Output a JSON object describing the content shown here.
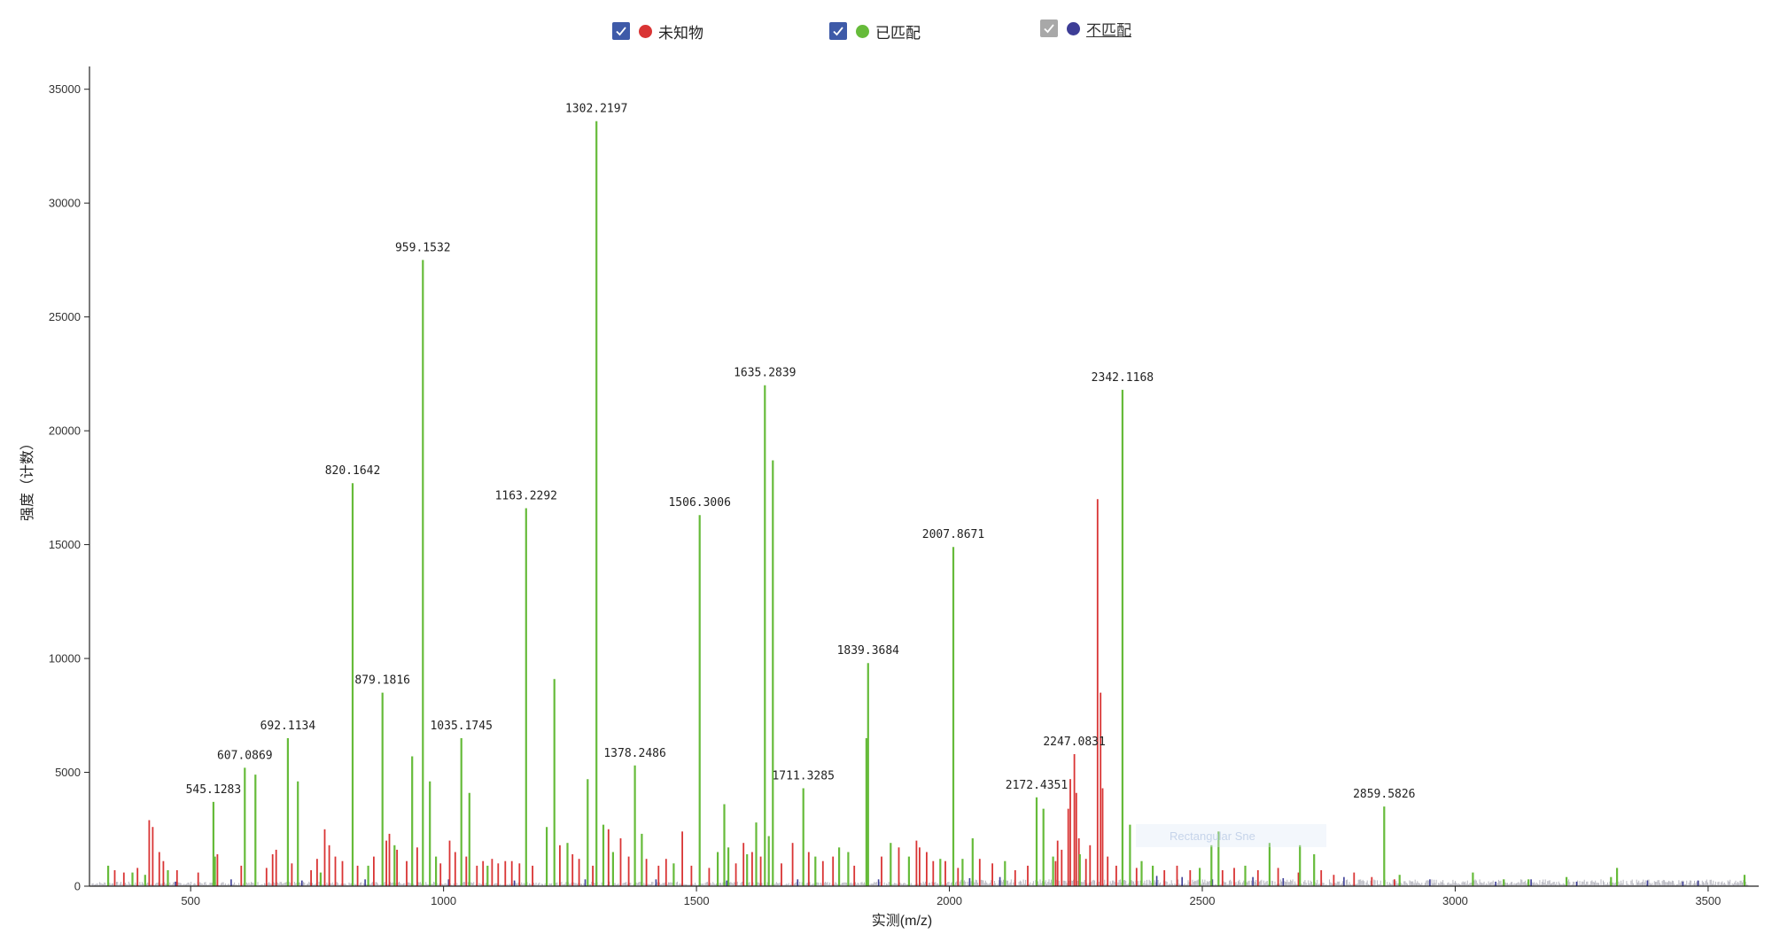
{
  "legend": {
    "items": [
      {
        "id": "unknown",
        "label": "未知物",
        "checked": true,
        "checkbox_color": "#3e5aa8",
        "dot_color": "#d93434",
        "link": false
      },
      {
        "id": "matched",
        "label": "已匹配",
        "checked": true,
        "checkbox_color": "#3e5aa8",
        "dot_color": "#66bb3a",
        "link": false
      },
      {
        "id": "unmatched",
        "label": "不匹配",
        "checked": true,
        "checkbox_color": "#a8a8a8",
        "dot_color": "#3d3d96",
        "link": true
      }
    ]
  },
  "overlay_text": "Rectangular Sne",
  "chart_data": {
    "type": "spectrum",
    "xlabel": "实测(m/z)",
    "ylabel": "强度（计数）",
    "xlim": [
      300,
      3600
    ],
    "ylim": [
      0,
      36000
    ],
    "x_ticks": [
      500,
      1000,
      1500,
      2000,
      2500,
      3000,
      3500
    ],
    "y_ticks": [
      0,
      5000,
      10000,
      15000,
      20000,
      25000,
      30000,
      35000
    ],
    "colors": {
      "matched": "#66bb3a",
      "unknown": "#d93434",
      "unmatched": "#3d3d96",
      "noise": "#7a7a8a"
    },
    "labeled_peaks": [
      {
        "mz": 545.1283,
        "intensity": 3700,
        "label": "545.1283"
      },
      {
        "mz": 607.0869,
        "intensity": 5200,
        "label": "607.0869"
      },
      {
        "mz": 692.1134,
        "intensity": 6500,
        "label": "692.1134"
      },
      {
        "mz": 820.1642,
        "intensity": 17700,
        "label": "820.1642"
      },
      {
        "mz": 879.1816,
        "intensity": 8500,
        "label": "879.1816"
      },
      {
        "mz": 959.1532,
        "intensity": 27500,
        "label": "959.1532"
      },
      {
        "mz": 1035.1745,
        "intensity": 6500,
        "label": "1035.1745"
      },
      {
        "mz": 1163.2292,
        "intensity": 16600,
        "label": "1163.2292"
      },
      {
        "mz": 1302.2197,
        "intensity": 33600,
        "label": "1302.2197"
      },
      {
        "mz": 1378.2486,
        "intensity": 5300,
        "label": "1378.2486"
      },
      {
        "mz": 1506.3006,
        "intensity": 16300,
        "label": "1506.3006"
      },
      {
        "mz": 1635.2839,
        "intensity": 22000,
        "label": "1635.2839"
      },
      {
        "mz": 1711.3285,
        "intensity": 4300,
        "label": "1711.3285"
      },
      {
        "mz": 1839.3684,
        "intensity": 9800,
        "label": "1839.3684"
      },
      {
        "mz": 2007.8671,
        "intensity": 14900,
        "label": "2007.8671"
      },
      {
        "mz": 2172.4351,
        "intensity": 3900,
        "label": "2172.4351"
      },
      {
        "mz": 2247.0831,
        "intensity": 5800,
        "label": "2247.0831"
      },
      {
        "mz": 2342.1168,
        "intensity": 21800,
        "label": "2342.1168"
      },
      {
        "mz": 2859.5826,
        "intensity": 3500,
        "label": "2859.5826"
      }
    ],
    "matched_peaks": [
      [
        337,
        900
      ],
      [
        385,
        600
      ],
      [
        410,
        500
      ],
      [
        455,
        700
      ],
      [
        545.13,
        3700
      ],
      [
        548,
        1300
      ],
      [
        607.09,
        5200
      ],
      [
        628,
        4900
      ],
      [
        692.11,
        6500
      ],
      [
        712,
        4600
      ],
      [
        757,
        600
      ],
      [
        820.16,
        17700
      ],
      [
        851,
        900
      ],
      [
        879.18,
        8500
      ],
      [
        903,
        1800
      ],
      [
        938,
        5700
      ],
      [
        959.15,
        27500
      ],
      [
        973,
        4600
      ],
      [
        985,
        1300
      ],
      [
        1035.17,
        6500
      ],
      [
        1051,
        4100
      ],
      [
        1087,
        900
      ],
      [
        1163.23,
        16600
      ],
      [
        1204,
        2600
      ],
      [
        1219,
        9100
      ],
      [
        1245,
        1900
      ],
      [
        1285,
        4700
      ],
      [
        1302.22,
        33600
      ],
      [
        1316,
        2700
      ],
      [
        1335,
        1500
      ],
      [
        1378.25,
        5300
      ],
      [
        1392,
        2300
      ],
      [
        1455,
        1000
      ],
      [
        1506.3,
        16300
      ],
      [
        1542,
        1500
      ],
      [
        1555,
        3600
      ],
      [
        1563,
        1700
      ],
      [
        1600,
        1400
      ],
      [
        1618,
        2800
      ],
      [
        1635.28,
        22000
      ],
      [
        1643,
        2200
      ],
      [
        1651,
        18700
      ],
      [
        1711.33,
        4300
      ],
      [
        1735,
        1300
      ],
      [
        1782,
        1700
      ],
      [
        1800,
        1500
      ],
      [
        1836,
        6500
      ],
      [
        1839.37,
        9800
      ],
      [
        1884,
        1900
      ],
      [
        1920,
        1300
      ],
      [
        1982,
        1200
      ],
      [
        2007.87,
        14900
      ],
      [
        2026,
        1200
      ],
      [
        2046,
        2100
      ],
      [
        2110,
        1100
      ],
      [
        2172.44,
        3900
      ],
      [
        2186,
        3400
      ],
      [
        2205,
        1300
      ],
      [
        2258,
        1400
      ],
      [
        2342.12,
        21800
      ],
      [
        2357,
        2700
      ],
      [
        2380,
        1100
      ],
      [
        2402,
        900
      ],
      [
        2495,
        800
      ],
      [
        2518,
        1800
      ],
      [
        2532,
        2400
      ],
      [
        2585,
        900
      ],
      [
        2633,
        1900
      ],
      [
        2693,
        1800
      ],
      [
        2721,
        1400
      ],
      [
        2859.58,
        3500
      ],
      [
        2890,
        500
      ],
      [
        3035,
        600
      ],
      [
        3096,
        300
      ],
      [
        3145,
        300
      ],
      [
        3220,
        400
      ],
      [
        3308,
        400
      ],
      [
        3320,
        800
      ],
      [
        3572,
        500
      ]
    ],
    "unknown_peaks": [
      [
        350,
        700
      ],
      [
        368,
        600
      ],
      [
        395,
        800
      ],
      [
        418,
        2900
      ],
      [
        425,
        2600
      ],
      [
        438,
        1500
      ],
      [
        446,
        1100
      ],
      [
        473,
        700
      ],
      [
        515,
        600
      ],
      [
        553,
        1400
      ],
      [
        600,
        900
      ],
      [
        650,
        800
      ],
      [
        662,
        1400
      ],
      [
        669,
        1600
      ],
      [
        700,
        1000
      ],
      [
        738,
        700
      ],
      [
        750,
        1200
      ],
      [
        765,
        2500
      ],
      [
        774,
        1800
      ],
      [
        786,
        1300
      ],
      [
        800,
        1100
      ],
      [
        830,
        900
      ],
      [
        862,
        1300
      ],
      [
        887,
        2000
      ],
      [
        893,
        2300
      ],
      [
        908,
        1600
      ],
      [
        927,
        1100
      ],
      [
        948,
        1700
      ],
      [
        994,
        1000
      ],
      [
        1012,
        2000
      ],
      [
        1023,
        1500
      ],
      [
        1045,
        1300
      ],
      [
        1066,
        900
      ],
      [
        1078,
        1100
      ],
      [
        1096,
        1200
      ],
      [
        1108,
        1000
      ],
      [
        1122,
        1100
      ],
      [
        1135,
        1100
      ],
      [
        1150,
        1000
      ],
      [
        1176,
        900
      ],
      [
        1230,
        1800
      ],
      [
        1255,
        1400
      ],
      [
        1268,
        1200
      ],
      [
        1295,
        900
      ],
      [
        1326,
        2500
      ],
      [
        1350,
        2100
      ],
      [
        1366,
        1300
      ],
      [
        1401,
        1200
      ],
      [
        1425,
        900
      ],
      [
        1440,
        1200
      ],
      [
        1472,
        2400
      ],
      [
        1490,
        900
      ],
      [
        1525,
        800
      ],
      [
        1578,
        1000
      ],
      [
        1593,
        1900
      ],
      [
        1610,
        1500
      ],
      [
        1627,
        1300
      ],
      [
        1668,
        1000
      ],
      [
        1690,
        1900
      ],
      [
        1722,
        1500
      ],
      [
        1750,
        1100
      ],
      [
        1770,
        1300
      ],
      [
        1812,
        900
      ],
      [
        1866,
        1300
      ],
      [
        1900,
        1700
      ],
      [
        1935,
        2000
      ],
      [
        1941,
        1700
      ],
      [
        1955,
        1500
      ],
      [
        1968,
        1100
      ],
      [
        1992,
        1100
      ],
      [
        2017,
        800
      ],
      [
        2060,
        1200
      ],
      [
        2085,
        1000
      ],
      [
        2130,
        700
      ],
      [
        2155,
        900
      ],
      [
        2210,
        1100
      ],
      [
        2214,
        2000
      ],
      [
        2222,
        1600
      ],
      [
        2235,
        3400
      ],
      [
        2239,
        4700
      ],
      [
        2247.08,
        5800
      ],
      [
        2251,
        4100
      ],
      [
        2256,
        2100
      ],
      [
        2270,
        1200
      ],
      [
        2278,
        1800
      ],
      [
        2293,
        17000
      ],
      [
        2299,
        8500
      ],
      [
        2303,
        4300
      ],
      [
        2313,
        1300
      ],
      [
        2330,
        900
      ],
      [
        2370,
        800
      ],
      [
        2425,
        700
      ],
      [
        2450,
        900
      ],
      [
        2476,
        700
      ],
      [
        2540,
        700
      ],
      [
        2563,
        800
      ],
      [
        2610,
        700
      ],
      [
        2650,
        800
      ],
      [
        2690,
        600
      ],
      [
        2735,
        700
      ],
      [
        2760,
        500
      ],
      [
        2800,
        600
      ],
      [
        2835,
        400
      ],
      [
        2880,
        300
      ]
    ],
    "unmatched_peaks": [
      [
        470,
        200
      ],
      [
        580,
        300
      ],
      [
        720,
        250
      ],
      [
        845,
        300
      ],
      [
        1010,
        300
      ],
      [
        1140,
        250
      ],
      [
        1280,
        300
      ],
      [
        1420,
        300
      ],
      [
        1560,
        250
      ],
      [
        1700,
        300
      ],
      [
        1860,
        300
      ],
      [
        2040,
        350
      ],
      [
        2100,
        400
      ],
      [
        2410,
        450
      ],
      [
        2460,
        400
      ],
      [
        2520,
        300
      ],
      [
        2600,
        400
      ],
      [
        2660,
        350
      ],
      [
        2780,
        400
      ],
      [
        2950,
        300
      ],
      [
        3080,
        200
      ],
      [
        3150,
        300
      ],
      [
        3240,
        200
      ],
      [
        3380,
        250
      ],
      [
        3450,
        200
      ],
      [
        3480,
        250
      ]
    ]
  }
}
